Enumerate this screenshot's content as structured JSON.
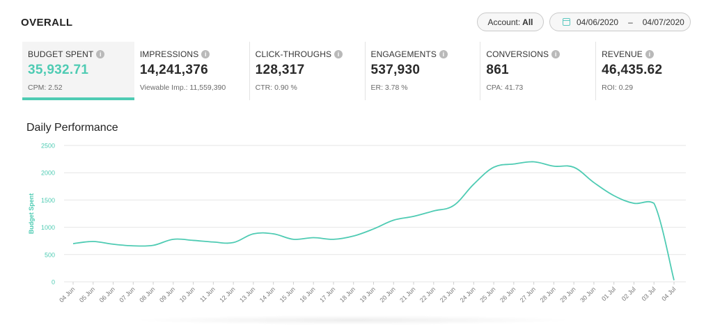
{
  "header": {
    "title": "OVERALL",
    "account_label": "Account:",
    "account_value": "All",
    "date_from": "04/06/2020",
    "date_sep": "–",
    "date_to": "04/07/2020",
    "calendar_icon": "calendar-icon"
  },
  "kpis": [
    {
      "label": "BUDGET SPENT",
      "value": "35,932.71",
      "sub": "CPM: 2.52",
      "active": true
    },
    {
      "label": "IMPRESSIONS",
      "value": "14,241,376",
      "sub": "Viewable Imp.: 11,559,390"
    },
    {
      "label": "CLICK-THROUGHS",
      "value": "128,317",
      "sub": "CTR: 0.90 %"
    },
    {
      "label": "ENGAGEMENTS",
      "value": "537,930",
      "sub": "ER: 3.78 %"
    },
    {
      "label": "CONVERSIONS",
      "value": "861",
      "sub": "CPA: 41.73"
    },
    {
      "label": "REVENUE",
      "value": "46,435.62",
      "sub": "ROI: 0.29"
    }
  ],
  "info_icon_glyph": "i",
  "colors": {
    "accent": "#4ecbb3",
    "grid": "#e6e6e6",
    "tick_text": "#777777"
  },
  "chart_data": {
    "type": "line",
    "title": "Daily Performance",
    "ylabel": "Budget Spent",
    "xlabel": "",
    "ylim": [
      0,
      2500
    ],
    "yticks": [
      0,
      500,
      1000,
      1500,
      2000,
      2500
    ],
    "grid": true,
    "categories": [
      "04 Jun",
      "05 Jun",
      "06 Jun",
      "07 Jun",
      "08 Jun",
      "09 Jun",
      "10 Jun",
      "11 Jun",
      "12 Jun",
      "13 Jun",
      "14 Jun",
      "15 Jun",
      "16 Jun",
      "17 Jun",
      "18 Jun",
      "19 Jun",
      "20 Jun",
      "21 Jun",
      "22 Jun",
      "23 Jun",
      "24 Jun",
      "25 Jun",
      "26 Jun",
      "27 Jun",
      "28 Jun",
      "29 Jun",
      "30 Jun",
      "01 Jul",
      "02 Jul",
      "03 Jul",
      "04 Jul"
    ],
    "series": [
      {
        "values": [
          700,
          740,
          690,
          660,
          670,
          780,
          760,
          730,
          720,
          880,
          880,
          780,
          810,
          780,
          840,
          970,
          1130,
          1200,
          1300,
          1400,
          1790,
          2100,
          2160,
          2200,
          2120,
          2100,
          1820,
          1580,
          1440,
          1440,
          30
        ]
      }
    ]
  }
}
